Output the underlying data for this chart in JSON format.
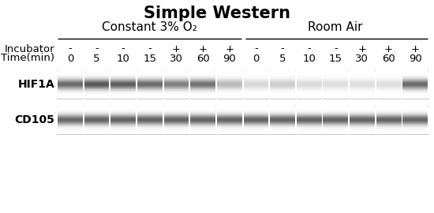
{
  "title": "Simple Western",
  "group1_label": "Constant 3% O₂",
  "group2_label": "Room Air",
  "incubator_row": [
    "-",
    "-",
    "-",
    "-",
    "+",
    "+",
    "+",
    "-",
    "-",
    "-",
    "-",
    "+",
    "+",
    "+"
  ],
  "time_row": [
    "0",
    "5",
    "10",
    "15",
    "30",
    "60",
    "90",
    "0",
    "5",
    "10",
    "15",
    "30",
    "60",
    "90"
  ],
  "row_labels": [
    "HIF1A",
    "CD105"
  ],
  "hif1a_intensities": [
    0.82,
    0.92,
    0.88,
    0.82,
    0.7,
    0.78,
    0.38,
    0.22,
    0.28,
    0.2,
    0.18,
    0.18,
    0.18,
    0.82
  ],
  "cd105_intensities": [
    0.82,
    0.85,
    0.85,
    0.85,
    0.85,
    0.85,
    0.85,
    0.85,
    0.85,
    0.85,
    0.85,
    0.85,
    0.85,
    0.83
  ],
  "bg_color": "#ffffff",
  "n_lanes": 14,
  "title_fontsize": 15,
  "label_fontsize": 9.5,
  "header_fontsize": 11
}
